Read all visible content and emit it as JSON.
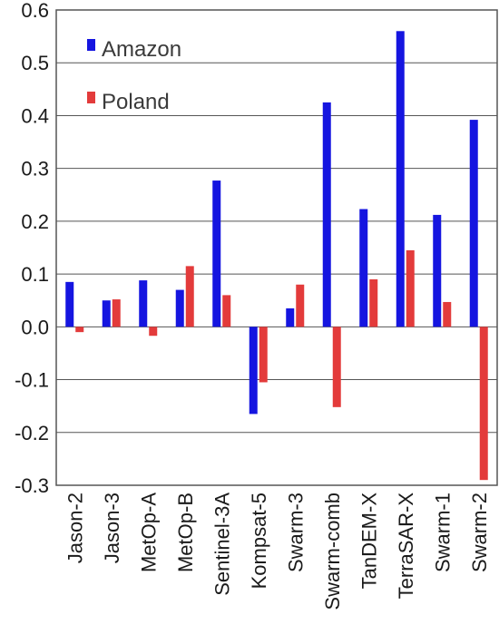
{
  "chart_data": {
    "type": "bar",
    "categories": [
      "Jason-2",
      "Jason-3",
      "MetOp-A",
      "MetOp-B",
      "Sentinel-3A",
      "Kompsat-5",
      "Swarm-3",
      "Swarm-comb",
      "TanDEM-X",
      "TerraSAR-X",
      "Swarm-1",
      "Swarm-2"
    ],
    "series": [
      {
        "name": "Amazon",
        "color": "#1515e0",
        "values": [
          0.085,
          0.05,
          0.088,
          0.07,
          0.277,
          -0.165,
          0.035,
          0.425,
          0.223,
          0.56,
          0.212,
          0.392
        ]
      },
      {
        "name": "Poland",
        "color": "#e33b3b",
        "values": [
          -0.01,
          0.052,
          -0.017,
          0.115,
          0.06,
          -0.105,
          0.08,
          -0.152,
          0.09,
          0.145,
          0.047,
          -0.29
        ]
      }
    ],
    "yticks": [
      "0.6",
      "0.5",
      "0.4",
      "0.3",
      "0.2",
      "0.1",
      "0.0",
      "-0.1",
      "-0.2",
      "-0.3"
    ],
    "ylim": [
      -0.3,
      0.6
    ],
    "grid": true,
    "legend": "top-left"
  }
}
